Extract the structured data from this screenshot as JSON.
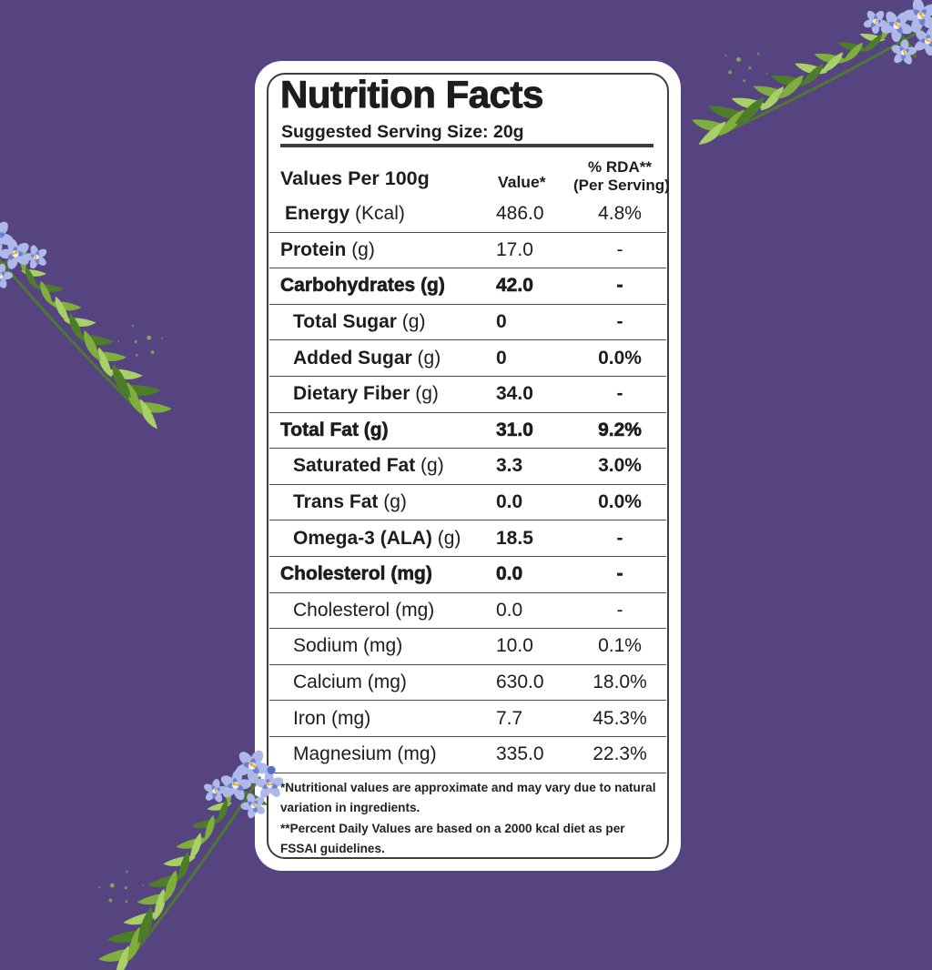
{
  "colors": {
    "bg": "#564481",
    "ink": "#1d1d1d",
    "border": "#3e3e3e",
    "card": "#ffffff",
    "petal": "#aeb8e9",
    "petal-deep": "#5570c6",
    "stamen": "#eda91c",
    "leaf-light": "#a9cf68",
    "leaf-mid": "#7fae3e",
    "leaf-dark": "#4e7d2a",
    "splat": "#86bb4a"
  },
  "card": {
    "title": "Nutrition Facts",
    "serving_size": "Suggested Serving Size: 20g",
    "columns": {
      "col1": "Values Per 100g",
      "col2": "Value*",
      "col3_line1": "% RDA**",
      "col3_line2": "(Per Serving)"
    },
    "rows": [
      {
        "name": "Energy",
        "unit": "(Kcal)",
        "value": "486.0",
        "pct": "4.8%",
        "style": "semibold",
        "value_style": "regular",
        "indent": 1
      },
      {
        "name": "Protein",
        "unit": "(g)",
        "value": "17.0",
        "pct": "-",
        "style": "semibold",
        "value_style": "regular",
        "indent": 0
      },
      {
        "name": "Carbohydrates",
        "unit": "(g)",
        "value": "42.0",
        "pct": "-",
        "style": "bold",
        "indent": 0
      },
      {
        "name": "Total Sugar",
        "unit": "(g)",
        "value": "0",
        "pct": "-",
        "style": "semibold",
        "indent": 2
      },
      {
        "name": "Added Sugar",
        "unit": "(g)",
        "value": "0",
        "pct": "0.0%",
        "style": "semibold",
        "indent": 2
      },
      {
        "name": "Dietary Fiber",
        "unit": "(g)",
        "value": "34.0",
        "pct": "-",
        "style": "semibold",
        "indent": 2
      },
      {
        "name": "Total Fat",
        "unit": "(g)",
        "value": "31.0",
        "pct": "9.2%",
        "style": "bold",
        "indent": 0
      },
      {
        "name": "Saturated Fat",
        "unit": "(g)",
        "value": "3.3",
        "pct": "3.0%",
        "style": "semibold",
        "indent": 2
      },
      {
        "name": "Trans Fat",
        "unit": "(g)",
        "value": "0.0",
        "pct": "0.0%",
        "style": "semibold",
        "indent": 2
      },
      {
        "name": "Omega-3 (ALA)",
        "unit": "(g)",
        "value": "18.5",
        "pct": "-",
        "style": "semibold",
        "indent": 2
      },
      {
        "name": "Cholesterol",
        "unit": "(mg)",
        "value": "0.0",
        "pct": "-",
        "style": "bold",
        "indent": 0
      },
      {
        "name": "Cholesterol",
        "unit": "(mg)",
        "value": "0.0",
        "pct": "-",
        "style": "regular",
        "indent": 2
      },
      {
        "name": "Sodium",
        "unit": "(mg)",
        "value": "10.0",
        "pct": "0.1%",
        "style": "regular",
        "indent": 2
      },
      {
        "name": "Calcium",
        "unit": "(mg)",
        "value": "630.0",
        "pct": "18.0%",
        "style": "regular",
        "indent": 2
      },
      {
        "name": "Iron",
        "unit": "(mg)",
        "value": "7.7",
        "pct": "45.3%",
        "style": "regular",
        "indent": 2
      },
      {
        "name": "Magnesium",
        "unit": "(mg)",
        "value": "335.0",
        "pct": "22.3%",
        "style": "regular",
        "indent": 2
      }
    ],
    "footnotes": [
      "*Nutritional values are approximate and may vary due to natural variation in ingredients.",
      "**Percent Daily Values are based on a 2000 kcal diet as per FSSAI guidelines."
    ]
  }
}
